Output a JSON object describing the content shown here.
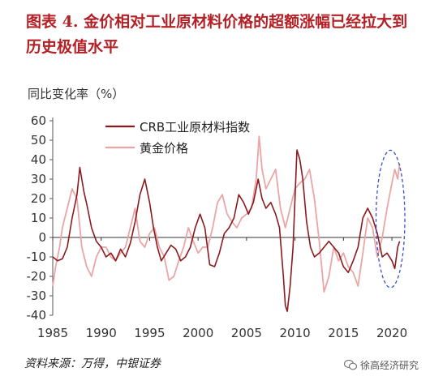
{
  "title": "图表 4. 金价相对工业原材料价格的超额涨幅已经拉大到历史极值水平",
  "ylabel": "同比变化率（%）",
  "source": "资料来源：万得，中银证券",
  "watermark": "徐高经济研究",
  "colors": {
    "crb": "#8b1a1f",
    "gold": "#eba5a5",
    "title": "#b32025",
    "highlight": "#3a4fd1"
  },
  "chart_data": {
    "type": "line",
    "title": "",
    "xlabel": "",
    "ylabel": "同比变化率（%）",
    "xlim": [
      1985,
      2021
    ],
    "ylim": [
      -40,
      60
    ],
    "xticks": [
      1985,
      1990,
      1995,
      2000,
      2005,
      2010,
      2015,
      2020
    ],
    "yticks": [
      -40,
      -30,
      -20,
      -10,
      0,
      10,
      20,
      30,
      40,
      50,
      60
    ],
    "legend_position": "top-center",
    "series": [
      {
        "name": "CRB工业原材料指数",
        "color": "#8b1a1f",
        "x": [
          1985.0,
          1985.5,
          1986.0,
          1986.5,
          1987.0,
          1987.5,
          1987.8,
          1988.2,
          1988.6,
          1989.0,
          1989.5,
          1990.0,
          1990.5,
          1991.0,
          1991.5,
          1992.0,
          1992.5,
          1993.0,
          1993.5,
          1994.0,
          1994.5,
          1995.0,
          1995.4,
          1995.8,
          1996.2,
          1996.7,
          1997.2,
          1997.7,
          1998.2,
          1998.7,
          1999.2,
          1999.7,
          2000.2,
          2000.7,
          2001.2,
          2001.7,
          2002.2,
          2002.7,
          2003.2,
          2003.7,
          2004.2,
          2004.7,
          2005.2,
          2005.7,
          2006.2,
          2006.6,
          2007.0,
          2007.5,
          2008.0,
          2008.4,
          2008.8,
          2009.0,
          2009.2,
          2009.5,
          2009.8,
          2010.0,
          2010.2,
          2010.5,
          2010.8,
          2011.2,
          2011.6,
          2012.0,
          2012.5,
          2013.0,
          2013.5,
          2014.0,
          2014.5,
          2015.0,
          2015.5,
          2016.0,
          2016.5,
          2017.0,
          2017.5,
          2018.0,
          2018.5,
          2019.0,
          2019.5,
          2020.0,
          2020.3,
          2020.6,
          2020.8
        ],
        "values": [
          -10,
          -12,
          -11,
          -5,
          10,
          22,
          36,
          24,
          15,
          5,
          -2,
          -5,
          -10,
          -8,
          -12,
          -6,
          -10,
          -3,
          8,
          22,
          30,
          18,
          5,
          -5,
          -12,
          -8,
          -4,
          -6,
          -12,
          -10,
          -5,
          5,
          12,
          5,
          -14,
          -15,
          -8,
          2,
          5,
          10,
          22,
          18,
          12,
          18,
          30,
          20,
          15,
          18,
          12,
          5,
          -20,
          -35,
          -38,
          -25,
          -5,
          20,
          45,
          40,
          30,
          8,
          -5,
          -10,
          -8,
          -5,
          -2,
          -5,
          -8,
          -15,
          -18,
          -12,
          -5,
          10,
          15,
          10,
          2,
          -10,
          -8,
          -12,
          -16,
          -5,
          -2
        ]
      },
      {
        "name": "黄金价格",
        "color": "#eba5a5",
        "x": [
          1985.0,
          1985.3,
          1985.7,
          1986.0,
          1986.5,
          1987.0,
          1987.5,
          1988.0,
          1988.5,
          1989.0,
          1989.5,
          1990.0,
          1990.5,
          1991.0,
          1991.5,
          1992.0,
          1992.5,
          1993.0,
          1993.5,
          1994.0,
          1994.5,
          1995.0,
          1995.5,
          1996.0,
          1996.5,
          1997.0,
          1997.5,
          1998.0,
          1998.5,
          1999.0,
          1999.5,
          2000.0,
          2000.5,
          2001.0,
          2001.5,
          2002.0,
          2002.5,
          2003.0,
          2003.5,
          2004.0,
          2004.5,
          2005.0,
          2005.5,
          2006.0,
          2006.3,
          2006.6,
          2007.0,
          2007.5,
          2008.0,
          2008.5,
          2009.0,
          2009.5,
          2010.0,
          2010.5,
          2011.0,
          2011.5,
          2012.0,
          2012.5,
          2013.0,
          2013.5,
          2014.0,
          2014.5,
          2015.0,
          2015.5,
          2016.0,
          2016.5,
          2017.0,
          2017.5,
          2018.0,
          2018.5,
          2019.0,
          2019.5,
          2020.0,
          2020.3,
          2020.6,
          2020.8
        ],
        "values": [
          -25,
          -15,
          -5,
          5,
          15,
          25,
          20,
          -5,
          -15,
          -20,
          -10,
          -5,
          -5,
          -10,
          -12,
          -8,
          -5,
          5,
          15,
          -2,
          -5,
          2,
          5,
          -5,
          -10,
          -22,
          -20,
          -12,
          -5,
          5,
          -2,
          -8,
          -5,
          -5,
          5,
          18,
          22,
          12,
          8,
          5,
          10,
          12,
          15,
          30,
          52,
          35,
          25,
          30,
          35,
          15,
          5,
          15,
          25,
          28,
          30,
          35,
          20,
          -2,
          -28,
          -20,
          -5,
          -12,
          -8,
          -15,
          -18,
          -25,
          -8,
          10,
          5,
          -10,
          0,
          15,
          28,
          35,
          30,
          38
        ]
      }
    ],
    "annotation": {
      "type": "dashed-ellipse",
      "around_x": [
        2018.7,
        2021.0
      ],
      "around_y": [
        -25,
        44
      ]
    }
  }
}
